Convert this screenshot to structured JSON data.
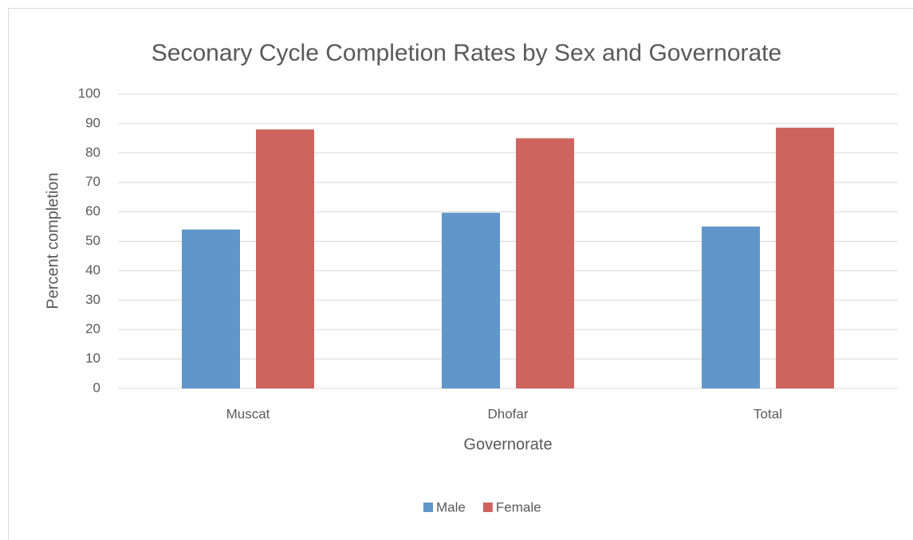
{
  "chart_data": {
    "type": "bar",
    "title": "Seconary Cycle Completion Rates by Sex and Governorate",
    "x_label": "Governorate",
    "y_label": "Percent completion",
    "categories": [
      "Muscat",
      "Dhofar",
      "Total"
    ],
    "series": [
      {
        "name": "Male",
        "color": "#6096c9",
        "values": [
          54,
          59.7,
          55
        ]
      },
      {
        "name": "Female",
        "color": "#cd655e",
        "values": [
          88,
          85,
          88.6
        ]
      }
    ],
    "ylim": [
      0,
      100
    ],
    "yticks": [
      0,
      10,
      20,
      30,
      40,
      50,
      60,
      70,
      80,
      90,
      100
    ],
    "grid": true,
    "legend": "bottom"
  }
}
